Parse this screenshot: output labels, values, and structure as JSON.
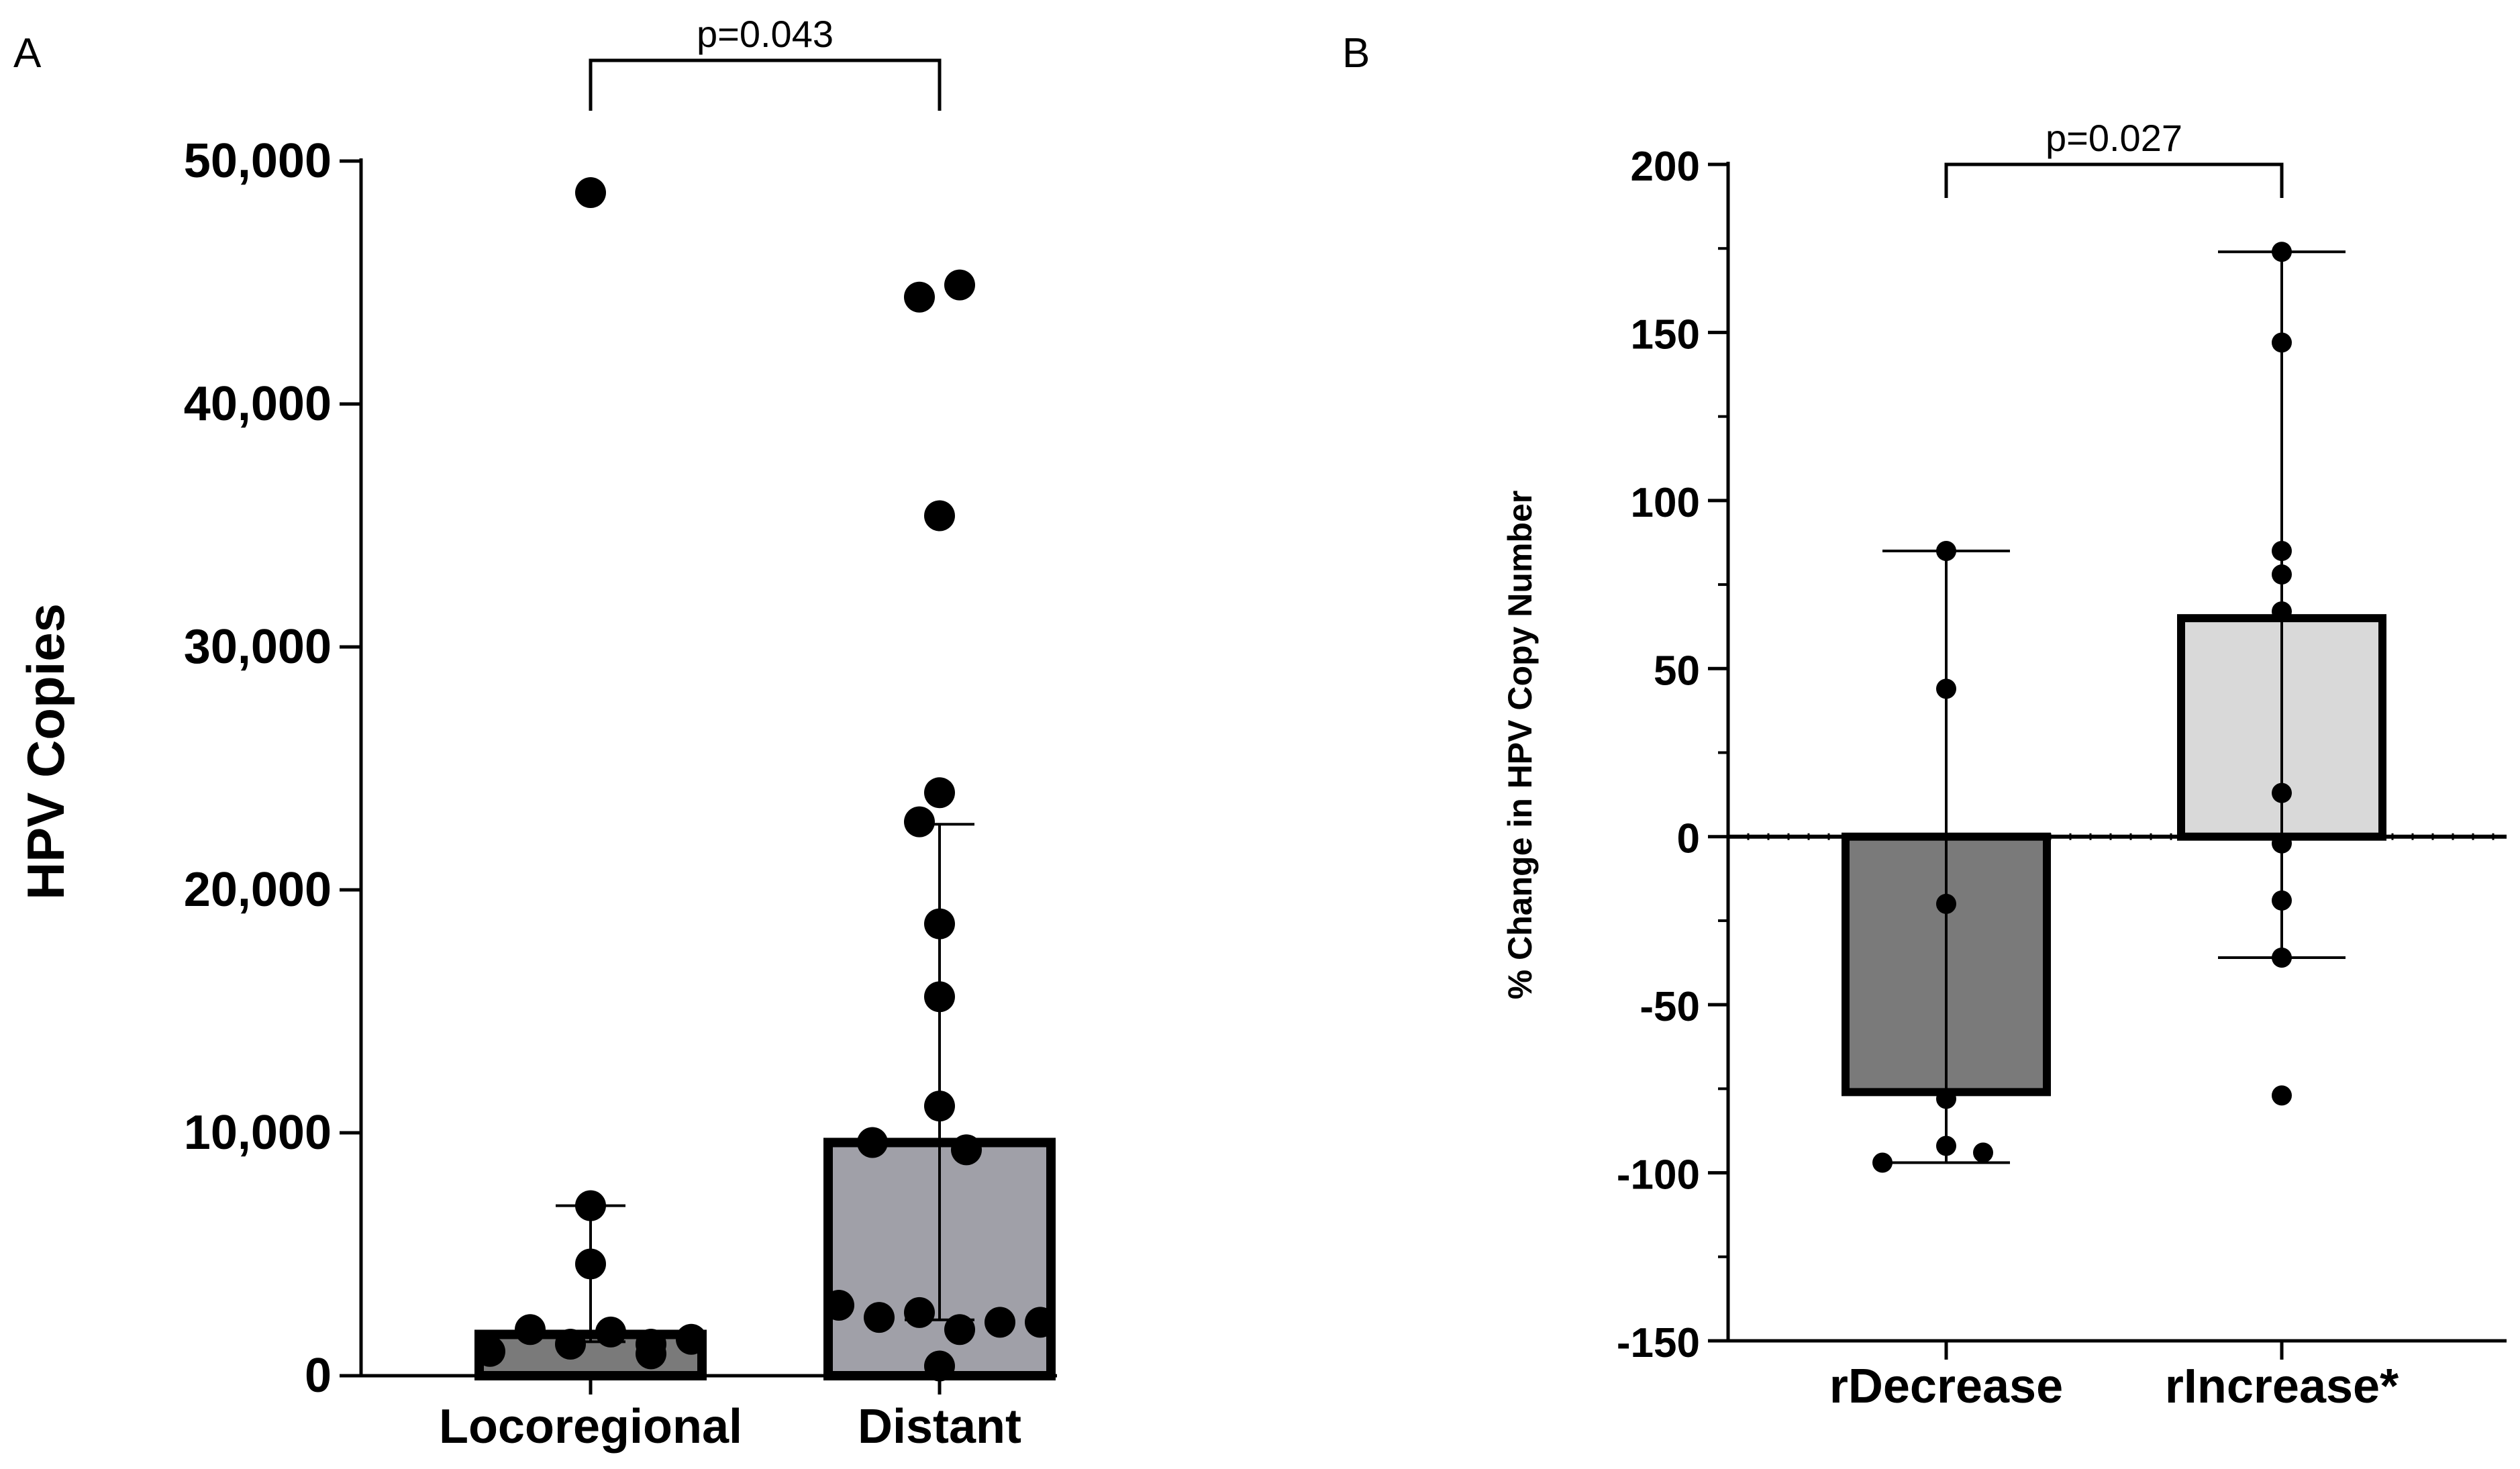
{
  "chart_data": [
    {
      "panel": "A",
      "type": "bar",
      "ylabel": "HPV Copies",
      "xlabel": "",
      "ylim": [
        0,
        50000
      ],
      "yticks": [
        "0",
        "10,000",
        "20,000",
        "30,000",
        "40,000",
        "50,000"
      ],
      "ytick_values": [
        0,
        10000,
        20000,
        30000,
        40000,
        50000
      ],
      "categories": [
        "Locoregional",
        "Distant"
      ],
      "values": [
        1700,
        9600
      ],
      "bar_colors": [
        "#7a7a7a",
        "#a0a0a8"
      ],
      "error_low": [
        1400,
        2300
      ],
      "error_high": [
        7000,
        22700
      ],
      "points": [
        [
          48700,
          7000,
          4600,
          1900,
          1800,
          1500,
          1300,
          1300,
          1000,
          900
        ],
        [
          44900,
          44400,
          35400,
          24000,
          22800,
          18600,
          15600,
          11100,
          9600,
          9300,
          2900,
          2600,
          2400,
          2200,
          2200,
          1900,
          400
        ]
      ],
      "comparison": {
        "label": "p=0.043",
        "from": 0,
        "to": 1
      }
    },
    {
      "panel": "B",
      "type": "bar",
      "ylabel": "% Change in HPV Copy Number",
      "xlabel": "",
      "ylim": [
        -150,
        200
      ],
      "yticks": [
        "-150",
        "-100",
        "-50",
        "0",
        "50",
        "100",
        "150",
        "200"
      ],
      "ytick_values": [
        -150,
        -100,
        -50,
        0,
        50,
        100,
        150,
        200
      ],
      "categories": [
        "rDecrease",
        "rIncrease*"
      ],
      "values": [
        -76,
        65
      ],
      "bar_colors": [
        "#7a7a7a",
        "#d9d9d9"
      ],
      "error_low": [
        -97,
        -36
      ],
      "error_high": [
        85,
        174
      ],
      "points": [
        [
          85,
          44,
          -20,
          -78,
          -92,
          -94,
          -97
        ],
        [
          174,
          147,
          85,
          78,
          67,
          13,
          -2,
          -19,
          -36,
          -77
        ]
      ],
      "comparison": {
        "label": "p=0.027",
        "from": 0,
        "to": 1
      }
    }
  ]
}
